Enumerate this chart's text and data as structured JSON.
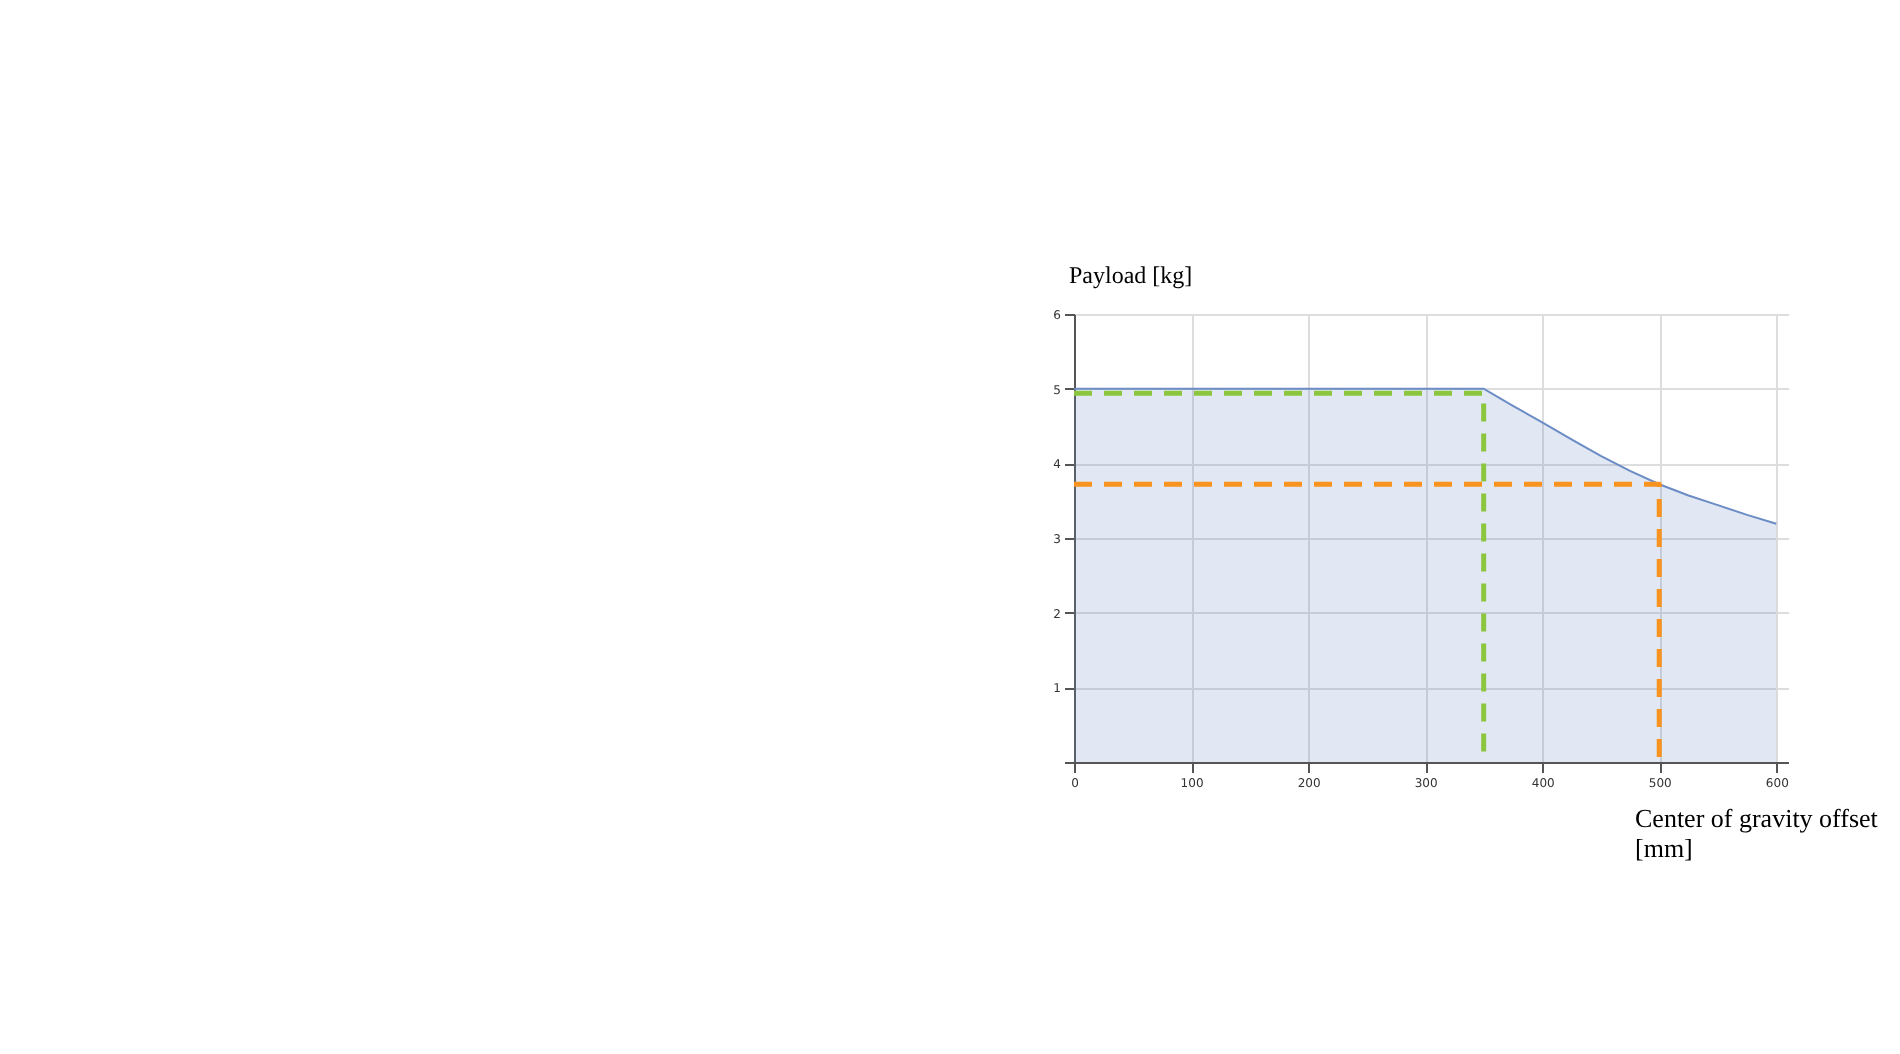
{
  "chart_data": {
    "type": "area",
    "xlabel": "Center of gravity offset [mm]",
    "ylabel": "Payload [kg]",
    "xlim": [
      0,
      610
    ],
    "xticks": [
      0,
      100,
      200,
      300,
      400,
      500,
      600
    ],
    "ylim": [
      0,
      6
    ],
    "yticks": [
      {
        "value": 0,
        "label": null
      },
      1,
      2,
      3,
      4,
      5,
      6
    ],
    "grid": true,
    "series": [
      {
        "color": "#6b8cc4",
        "x": [
          0,
          350,
          375,
          400,
          425,
          450,
          475,
          500,
          525,
          550,
          575,
          600
        ],
        "values": [
          5,
          5,
          4.77,
          4.55,
          4.32,
          4.1,
          3.9,
          3.72,
          3.57,
          3.44,
          3.31,
          3.19
        ]
      },
      {
        "type": "line",
        "line_style": "dashed",
        "color": "#8cc63f",
        "x": [
          0,
          350,
          350
        ],
        "values": [
          4.94,
          4.94,
          0
        ]
      },
      {
        "type": "line",
        "line_style": "dashed",
        "color": "#f7931e",
        "x": [
          0,
          500,
          500
        ],
        "values": [
          3.72,
          3.72,
          0
        ]
      }
    ]
  }
}
